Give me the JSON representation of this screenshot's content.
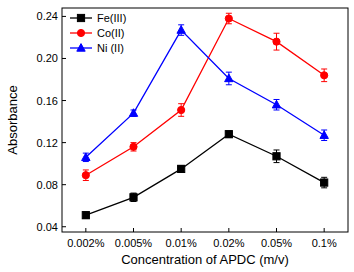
{
  "chart_data": {
    "type": "line",
    "x_label": "Concentration of APDC (m/v)",
    "y_label": "Absorbance",
    "categories": [
      "0.002%",
      "0.005%",
      "0.01%",
      "0.02%",
      "0.05%",
      "0.1%"
    ],
    "series": [
      {
        "name": "Fe(III)",
        "color": "#000000",
        "marker": "square",
        "values": [
          0.051,
          0.068,
          0.095,
          0.128,
          0.107,
          0.082
        ],
        "errors": [
          0.003,
          0.004,
          0.003,
          0.003,
          0.006,
          0.005
        ]
      },
      {
        "name": "Co(II)",
        "color": "#ff0000",
        "marker": "circle",
        "values": [
          0.089,
          0.116,
          0.151,
          0.238,
          0.216,
          0.184
        ],
        "errors": [
          0.005,
          0.004,
          0.006,
          0.005,
          0.008,
          0.006
        ]
      },
      {
        "name": "Ni (II)",
        "color": "#0000ff",
        "marker": "triangle",
        "values": [
          0.106,
          0.148,
          0.227,
          0.181,
          0.156,
          0.127
        ],
        "errors": [
          0.004,
          0.003,
          0.005,
          0.006,
          0.005,
          0.005
        ]
      }
    ],
    "ylim": [
      0.035,
      0.248
    ],
    "yticks": [
      0.04,
      0.08,
      0.12,
      0.16,
      {
        "value": 0.2,
        "label": "0.20"
      },
      0.24
    ],
    "grid": false,
    "legend": "upper left"
  }
}
